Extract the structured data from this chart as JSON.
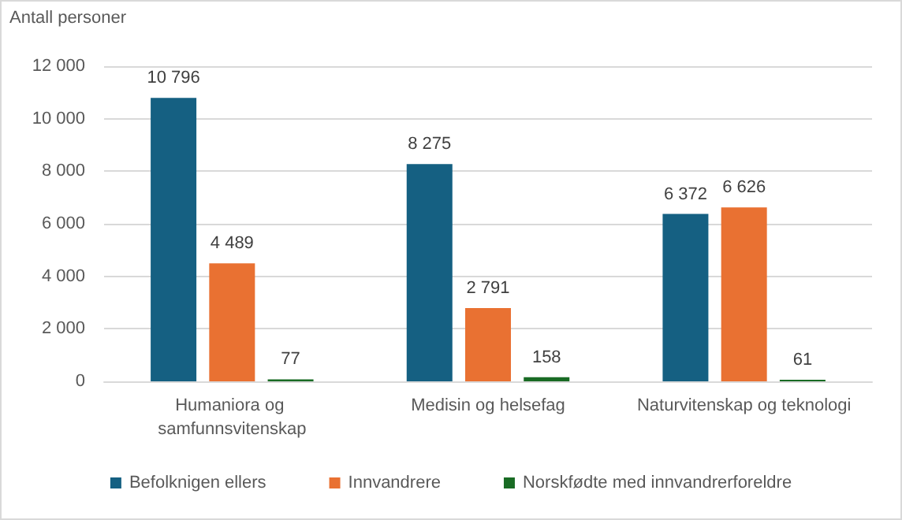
{
  "chart_data": {
    "type": "bar",
    "ylabel": "Antall personer",
    "categories": [
      "Humaniora og samfunnsvitenskap",
      "Medisin og helsefag",
      "Naturvitenskap og teknologi"
    ],
    "series": [
      {
        "name": "Befolknigen ellers",
        "color": "#156082",
        "values": [
          10796,
          8275,
          6372
        ],
        "value_labels": [
          "10 796",
          "8 275",
          "6 372"
        ]
      },
      {
        "name": "Innvandrere",
        "color": "#e97132",
        "values": [
          4489,
          2791,
          6626
        ],
        "value_labels": [
          "4 489",
          "2 791",
          "6 626"
        ]
      },
      {
        "name": "Norskfødte med innvandrerforeldre",
        "color": "#196b24",
        "values": [
          77,
          158,
          61
        ],
        "value_labels": [
          "77",
          "158",
          "61"
        ]
      }
    ],
    "ylim": [
      0,
      12000
    ],
    "yticks": [
      0,
      {
        "value": 2000,
        "label": "2 000"
      },
      {
        "value": 4000,
        "label": "4 000"
      },
      {
        "value": 6000,
        "label": "6 000"
      },
      {
        "value": 8000,
        "label": "8 000"
      },
      {
        "value": 10000,
        "label": "10 000"
      },
      {
        "value": 12000,
        "label": "12 000"
      }
    ],
    "grid": "y",
    "legend": "bottom"
  }
}
